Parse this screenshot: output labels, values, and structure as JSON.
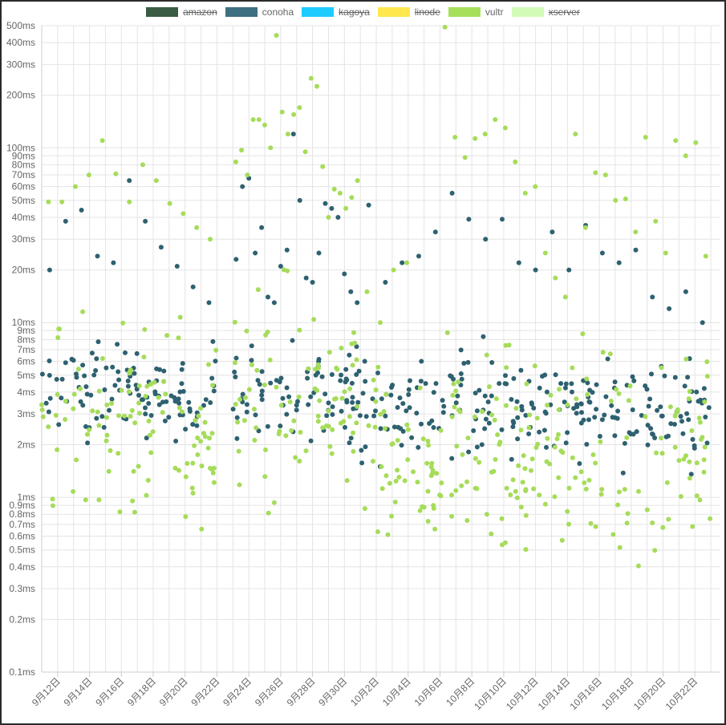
{
  "legend": [
    {
      "name": "amazon",
      "color": "#3b5b45",
      "hidden": true
    },
    {
      "name": "conoha",
      "color": "#3d7080",
      "hidden": false
    },
    {
      "name": "kagoya",
      "color": "#1ecbff",
      "hidden": true
    },
    {
      "name": "linode",
      "color": "#ffe74f",
      "hidden": true
    },
    {
      "name": "vultr",
      "color": "#a6e05a",
      "hidden": false
    },
    {
      "name": "xserver",
      "color": "#d3fbb7",
      "hidden": true
    }
  ],
  "chart_data": {
    "type": "scatter",
    "y_scale": "log",
    "ylim_ms": [
      0.1,
      500
    ],
    "y_tick_labels": [
      "0.1ms",
      "0.2ms",
      "0.3ms",
      "0.4ms",
      "0.5ms",
      "0.6ms",
      "0.7ms",
      "0.8ms",
      "0.9ms",
      "1ms",
      "2ms",
      "3ms",
      "4ms",
      "5ms",
      "6ms",
      "7ms",
      "8ms",
      "9ms",
      "10ms",
      "20ms",
      "30ms",
      "40ms",
      "50ms",
      "60ms",
      "70ms",
      "80ms",
      "90ms",
      "100ms",
      "200ms",
      "300ms",
      "400ms",
      "500ms"
    ],
    "x_range": [
      "9月11日",
      "10月23日"
    ],
    "x_tick_labels": [
      "9月12日",
      "9月14日",
      "9月16日",
      "9月18日",
      "9月20日",
      "9月22日",
      "9月24日",
      "9月26日",
      "9月28日",
      "9月30日",
      "10月2日",
      "10月4日",
      "10月6日",
      "10月8日",
      "10月10日",
      "10月12日",
      "10月14日",
      "10月16日",
      "10月18日",
      "10月20日",
      "10月22日"
    ],
    "grid": true,
    "legend_position": "top",
    "series": [
      {
        "name": "conoha",
        "color": "#2e6170",
        "segments": [
          {
            "from": "9月11日",
            "to": "9月22日",
            "center_ms": 4.0,
            "spread_decades": 0.25,
            "outlier_ms": [
              20,
              38,
              44,
              24,
              22,
              65,
              38,
              27,
              21,
              16,
              13
            ]
          },
          {
            "from": "9月23日",
            "to": "10月1日",
            "center_ms": 4.0,
            "spread_decades": 0.25,
            "outlier_ms": [
              23,
              60,
              67,
              25,
              35,
              14,
              13,
              21,
              26,
              120,
              50,
              18,
              17,
              25,
              48,
              45,
              40,
              19,
              15,
              13
            ]
          },
          {
            "from": "10月1日",
            "to": "10月23日",
            "center_ms": 3.3,
            "spread_decades": 0.3,
            "outlier_ms": [
              47,
              17,
              22,
              24,
              33,
              55,
              39,
              30,
              39,
              22,
              20,
              33,
              20,
              36,
              25,
              22,
              26,
              14,
              12,
              15,
              10
            ]
          }
        ]
      },
      {
        "name": "vultr",
        "color": "#a6dc5a",
        "segments": [
          {
            "from": "9月11日",
            "to": "9月22日",
            "center_ms": 2.4,
            "spread_decades": 0.55,
            "outlier_ms": [
              49,
              49,
              60,
              70,
              110,
              71,
              49,
              80,
              65,
              48,
              42,
              35,
              30
            ]
          },
          {
            "from": "9月23日",
            "to": "10月1日",
            "center_ms": 3.5,
            "spread_decades": 0.6,
            "outlier_ms": [
              83,
              97,
              70,
              145,
              145,
              135,
              100,
              440,
              160,
              120,
              155,
              170,
              95,
              250,
              225,
              78,
              40,
              58,
              55,
              45,
              52,
              65
            ]
          },
          {
            "from": "10月1日",
            "to": "10月6日",
            "center_ms": 1.8,
            "spread_decades": 0.5,
            "outlier_ms": [
              15,
              10,
              20,
              22,
              0.84,
              0.9
            ]
          },
          {
            "from": "10月6日",
            "to": "10月23日",
            "center_ms": 1.8,
            "spread_decades": 0.55,
            "outlier_ms": [
              490,
              115,
              88,
              113,
              120,
              145,
              130,
              83,
              55,
              60,
              25,
              18,
              14,
              120,
              35,
              72,
              70,
              50,
              51,
              33,
              115,
              38,
              25,
              110,
              90,
              107,
              24
            ]
          }
        ]
      }
    ]
  }
}
